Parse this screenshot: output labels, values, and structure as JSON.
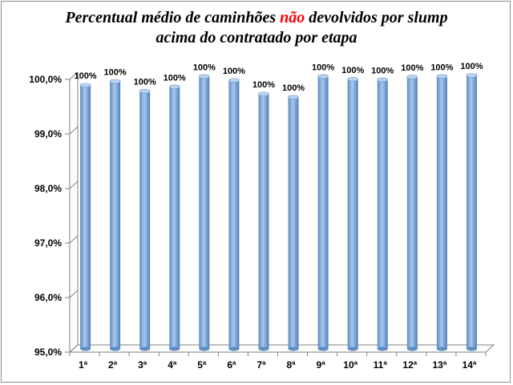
{
  "chart_data": {
    "type": "bar",
    "title_part1": "Percentual médio de caminhões ",
    "title_highlight": "não",
    "title_part2": " devolvidos por slump",
    "title_line2": "acima do contratado por etapa",
    "categories": [
      "1ª",
      "2ª",
      "3ª",
      "4ª",
      "5ª",
      "6ª",
      "7ª",
      "8ª",
      "9ª",
      "10ª",
      "11ª",
      "12ª",
      "13ª",
      "14ª"
    ],
    "values": [
      99.82,
      99.89,
      99.71,
      99.79,
      99.98,
      99.91,
      99.66,
      99.6,
      99.98,
      99.93,
      99.92,
      99.97,
      99.98,
      100.0
    ],
    "data_labels": [
      "100%",
      "100%",
      "100%",
      "100%",
      "100%",
      "100%",
      "100%",
      "100%",
      "100%",
      "100%",
      "100%",
      "100%",
      "100%",
      "100%"
    ],
    "ylim": [
      95.0,
      100.0
    ],
    "yticks": [
      95.0,
      96.0,
      97.0,
      98.0,
      99.0,
      100.0
    ],
    "ytick_labels": [
      "95,0%",
      "96,0%",
      "97,0%",
      "98,0%",
      "99,0%",
      "100,0%"
    ],
    "xlabel": "",
    "ylabel": "",
    "grid": false,
    "legend": "none",
    "colors": {
      "bar": "#8db3e2",
      "bar_dark": "#4f81bd",
      "title_highlight": "#ff0000",
      "axis": "#000000"
    }
  }
}
